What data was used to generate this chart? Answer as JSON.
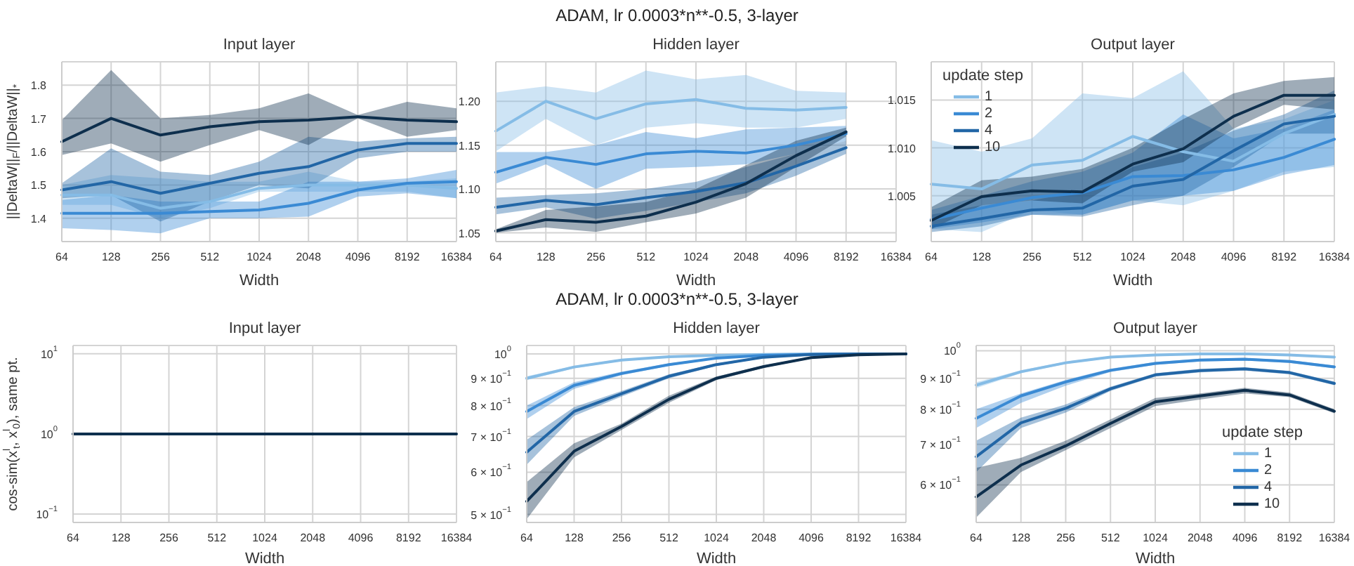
{
  "chart_data": [
    {
      "type": "line",
      "title": "Input layer",
      "xlabel": "Width",
      "ylabel": "||DeltaW||$_{F}$/||DeltaW||$_{*}$",
      "categories": [
        "64",
        "128",
        "256",
        "512",
        "1024",
        "2048",
        "4096",
        "8192",
        "16384"
      ],
      "ylim": [
        1.33,
        1.87
      ],
      "yticks": [
        1.4,
        1.5,
        1.6,
        1.7,
        1.8
      ],
      "grid": true,
      "series": [
        {
          "color": "#85bce6",
          "values": [
            1.47,
            1.47,
            1.43,
            1.45,
            1.49,
            1.5,
            1.5,
            1.5,
            1.49
          ],
          "lower": [
            1.44,
            1.44,
            1.4,
            1.43,
            1.48,
            1.48,
            1.48,
            1.48,
            1.46
          ],
          "upper": [
            1.5,
            1.53,
            1.52,
            1.51,
            1.51,
            1.54,
            1.51,
            1.51,
            1.52
          ]
        },
        {
          "color": "#3a8ad4",
          "values": [
            1.415,
            1.415,
            1.415,
            1.42,
            1.425,
            1.445,
            1.485,
            1.505,
            1.51
          ],
          "lower": [
            1.37,
            1.365,
            1.355,
            1.4,
            1.4,
            1.405,
            1.465,
            1.475,
            1.46
          ],
          "upper": [
            1.455,
            1.47,
            1.45,
            1.45,
            1.45,
            1.51,
            1.51,
            1.52,
            1.545
          ]
        },
        {
          "color": "#2266a6",
          "values": [
            1.485,
            1.51,
            1.475,
            1.505,
            1.535,
            1.555,
            1.605,
            1.625,
            1.625
          ],
          "lower": [
            1.46,
            1.47,
            1.39,
            1.45,
            1.5,
            1.49,
            1.58,
            1.6,
            1.6
          ],
          "upper": [
            1.505,
            1.61,
            1.54,
            1.53,
            1.57,
            1.645,
            1.63,
            1.64,
            1.645
          ]
        },
        {
          "color": "#0e2f4d",
          "values": [
            1.63,
            1.7,
            1.65,
            1.675,
            1.69,
            1.695,
            1.705,
            1.695,
            1.69
          ],
          "lower": [
            1.59,
            1.625,
            1.57,
            1.62,
            1.665,
            1.62,
            1.7,
            1.645,
            1.665
          ],
          "upper": [
            1.695,
            1.845,
            1.7,
            1.71,
            1.73,
            1.775,
            1.71,
            1.75,
            1.73
          ]
        }
      ]
    },
    {
      "type": "line",
      "title": "Hidden layer",
      "annotations": [
        "ADAM, lr 0.0003*n**-0.5, 3-layer"
      ],
      "xlabel": "Width",
      "categories": [
        "64",
        "128",
        "256",
        "512",
        "1024",
        "2048",
        "4096",
        "8192",
        "16384"
      ],
      "ylim": [
        1.04,
        1.245
      ],
      "yticks": [
        1.05,
        {
          "value": 1.1,
          "label": "1.10"
        },
        1.15,
        {
          "value": 1.2,
          "label": "1.20"
        }
      ],
      "grid": true,
      "series": [
        {
          "color": "#85bce6",
          "values": [
            1.166,
            1.2,
            1.18,
            1.197,
            1.202,
            1.192,
            1.19,
            1.193,
            null
          ],
          "lower": [
            1.143,
            1.18,
            1.15,
            1.17,
            1.175,
            1.17,
            1.17,
            1.18,
            null
          ],
          "upper": [
            1.21,
            1.217,
            1.21,
            1.235,
            1.225,
            1.23,
            1.212,
            1.21,
            null
          ]
        },
        {
          "color": "#3a8ad4",
          "values": [
            1.119,
            1.136,
            1.128,
            1.14,
            1.143,
            1.141,
            1.15,
            1.163,
            null
          ],
          "lower": [
            1.106,
            1.128,
            1.1,
            1.123,
            1.125,
            1.128,
            1.14,
            1.155,
            null
          ],
          "upper": [
            1.142,
            1.142,
            1.15,
            1.165,
            1.158,
            1.168,
            1.17,
            1.172,
            null
          ]
        },
        {
          "color": "#2266a6",
          "values": [
            1.079,
            1.087,
            1.082,
            1.09,
            1.097,
            1.107,
            1.126,
            1.147,
            null
          ],
          "lower": [
            1.071,
            1.079,
            1.066,
            1.075,
            1.085,
            1.095,
            1.115,
            1.14,
            null
          ],
          "upper": [
            1.09,
            1.093,
            1.095,
            1.1,
            1.108,
            1.125,
            1.14,
            1.155,
            null
          ]
        },
        {
          "color": "#0e2f4d",
          "values": [
            1.052,
            1.065,
            1.062,
            1.069,
            1.085,
            1.106,
            1.138,
            1.165,
            null
          ],
          "lower": [
            1.05,
            1.056,
            1.051,
            1.062,
            1.072,
            1.09,
            1.125,
            1.16,
            null
          ],
          "upper": [
            1.054,
            1.076,
            1.08,
            1.085,
            1.1,
            1.127,
            1.155,
            1.17,
            null
          ]
        }
      ]
    },
    {
      "type": "line",
      "title": "Output layer",
      "xlabel": "Width",
      "legend": "top left",
      "legend_title": "update step",
      "categories": [
        "64",
        "128",
        "256",
        "512",
        "1024",
        "2048",
        "4096",
        "8192",
        "16384"
      ],
      "ylim": [
        1.0002,
        1.019
      ],
      "yticks": [
        1.005,
        {
          "value": 1.01,
          "label": "1.010"
        },
        1.015
      ],
      "grid": true,
      "series": [
        {
          "name": "1",
          "color": "#85bce6",
          "values": [
            1.0062,
            1.0057,
            1.0082,
            1.0087,
            1.0112,
            1.0096,
            1.0086,
            1.0115,
            1.0135
          ],
          "lower": [
            1.0015,
            1.0012,
            1.0035,
            1.003,
            1.0045,
            1.004,
            1.0055,
            1.0075,
            1.008
          ],
          "upper": [
            1.0108,
            1.0096,
            1.011,
            1.0157,
            1.0152,
            1.018,
            1.012,
            1.013,
            1.015
          ]
        },
        {
          "name": "2",
          "color": "#3a8ad4",
          "values": [
            1.0025,
            1.0037,
            1.0048,
            1.0053,
            1.007,
            1.0071,
            1.0077,
            1.009,
            1.0109
          ],
          "lower": [
            1.0015,
            1.0022,
            1.003,
            1.003,
            1.0045,
            1.005,
            1.0055,
            1.0072,
            1.0082
          ],
          "upper": [
            1.0035,
            1.005,
            1.0065,
            1.0075,
            1.0095,
            1.0135,
            1.011,
            1.012,
            1.014
          ]
        },
        {
          "name": "4",
          "color": "#2266a6",
          "values": [
            1.0018,
            1.0026,
            1.0035,
            1.0037,
            1.006,
            1.0067,
            1.0097,
            1.0125,
            1.0133
          ],
          "lower": [
            1.0012,
            1.0018,
            1.003,
            1.0028,
            1.004,
            1.005,
            1.008,
            1.0115,
            1.0115
          ],
          "upper": [
            1.003,
            1.004,
            1.0045,
            1.0055,
            1.008,
            1.0095,
            1.0118,
            1.0135,
            1.016
          ]
        },
        {
          "name": "10",
          "color": "#0e2f4d",
          "values": [
            1.0024,
            1.0049,
            1.0055,
            1.0054,
            1.0083,
            1.0099,
            1.0133,
            1.0155,
            1.0155
          ],
          "lower": [
            1.0015,
            1.004,
            1.0045,
            1.0042,
            1.0075,
            1.0085,
            1.012,
            1.0145,
            1.014
          ],
          "upper": [
            1.0038,
            1.0066,
            1.007,
            1.0078,
            1.01,
            1.013,
            1.0157,
            1.017,
            1.0174
          ]
        }
      ]
    },
    {
      "type": "line",
      "title": "Input layer",
      "xlabel": "Width",
      "ylabel": "cos-sim(x$^{l}$$_{t}$, x$^{l}$$_{0}$), same pt.",
      "categories": [
        "64",
        "128",
        "256",
        "512",
        "1024",
        "2048",
        "4096",
        "8192",
        "16384"
      ],
      "log": true,
      "ylim": [
        0.0785,
        12.7
      ],
      "yticks": [
        {
          "value": 0.1,
          "label": "10$^{−1}$"
        },
        {
          "value": 1,
          "label": "10$^{0}$"
        },
        {
          "value": 10,
          "label": "10$^{1}$"
        }
      ],
      "grid": true,
      "series": [
        {
          "color": "#0e2f4d",
          "values": [
            1,
            1,
            1,
            1,
            1,
            1,
            1,
            1,
            1
          ]
        }
      ]
    },
    {
      "type": "line",
      "title": "Hidden layer",
      "annotations": [
        "ADAM, lr 0.0003*n**-0.5, 3-layer"
      ],
      "xlabel": "Width",
      "categories": [
        "64",
        "128",
        "256",
        "512",
        "1024",
        "2048",
        "4096",
        "8192",
        "16384"
      ],
      "log": true,
      "ylim": [
        0.483,
        1.037
      ],
      "yticks": [
        {
          "value": 0.5,
          "label": "5 × 10$^{−1}$"
        },
        {
          "value": 0.6,
          "label": "6 × 10$^{−1}$"
        },
        {
          "value": 0.7,
          "label": "7 × 10$^{−1}$"
        },
        {
          "value": 0.8,
          "label": "8 × 10$^{−1}$"
        },
        {
          "value": 0.9,
          "label": "9 × 10$^{−1}$"
        },
        {
          "value": 1,
          "label": "10$^{0}$"
        }
      ],
      "grid": true,
      "series": [
        {
          "color": "#85bce6",
          "values": [
            0.9,
            0.945,
            0.974,
            0.988,
            0.994,
            0.998,
            1,
            1,
            1
          ],
          "lower": [
            0.893,
            0.94,
            0.97,
            0.985,
            0.991,
            0.996,
            0.998,
            0.998,
            0.998
          ],
          "upper": [
            0.908,
            0.95,
            0.978,
            0.991,
            0.997,
            1,
            1.002,
            1.002,
            1.002
          ]
        },
        {
          "color": "#3a8ad4",
          "values": [
            0.78,
            0.873,
            0.919,
            0.955,
            0.982,
            0.994,
            0.998,
            1,
            1
          ],
          "lower": [
            0.755,
            0.86,
            0.912,
            0.95,
            0.978,
            0.991,
            0.996,
            0.998,
            0.998
          ],
          "upper": [
            0.8,
            0.885,
            0.926,
            0.96,
            0.986,
            0.997,
            1,
            1.002,
            1.002
          ]
        },
        {
          "color": "#2266a6",
          "values": [
            0.654,
            0.78,
            0.842,
            0.908,
            0.955,
            0.986,
            0.998,
            1,
            1
          ],
          "lower": [
            0.62,
            0.765,
            0.832,
            0.9,
            0.95,
            0.982,
            0.995,
            0.998,
            0.998
          ],
          "upper": [
            0.69,
            0.795,
            0.852,
            0.916,
            0.96,
            0.99,
            1,
            1.002,
            1.002
          ]
        },
        {
          "color": "#0e2f4d",
          "values": [
            0.529,
            0.657,
            0.731,
            0.822,
            0.9,
            0.947,
            0.984,
            0.996,
            1
          ],
          "lower": [
            0.49,
            0.64,
            0.72,
            0.81,
            0.893,
            0.942,
            0.98,
            0.993,
            0.998
          ],
          "upper": [
            0.575,
            0.68,
            0.74,
            0.835,
            0.907,
            0.952,
            0.988,
            0.999,
            1.002
          ]
        }
      ]
    },
    {
      "type": "line",
      "title": "Output layer",
      "xlabel": "Width",
      "legend": "bottom right",
      "legend_title": "update step",
      "categories": [
        "64",
        "128",
        "256",
        "512",
        "1024",
        "2048",
        "4096",
        "8192",
        "16384"
      ],
      "log": true,
      "ylim": [
        0.52,
        1.02
      ],
      "yticks": [
        {
          "value": 0.6,
          "label": "6 × 10$^{−1}$"
        },
        {
          "value": 0.7,
          "label": "7 × 10$^{−1}$"
        },
        {
          "value": 0.8,
          "label": "8 × 10$^{−1}$"
        },
        {
          "value": 0.9,
          "label": "9 × 10$^{−1}$"
        },
        {
          "value": 1,
          "label": "10$^{0}$"
        }
      ],
      "grid": true,
      "series": [
        {
          "name": "1",
          "color": "#85bce6",
          "values": [
            0.877,
            0.923,
            0.955,
            0.976,
            0.984,
            0.988,
            0.988,
            0.984,
            0.976
          ],
          "lower": [
            0.867,
            0.918,
            0.951,
            0.972,
            0.981,
            0.985,
            0.985,
            0.981,
            0.972
          ],
          "upper": [
            0.887,
            0.928,
            0.959,
            0.98,
            0.987,
            0.991,
            0.991,
            0.987,
            0.98
          ]
        },
        {
          "name": "2",
          "color": "#3a8ad4",
          "values": [
            0.773,
            0.842,
            0.888,
            0.928,
            0.953,
            0.965,
            0.968,
            0.96,
            0.94
          ],
          "lower": [
            0.745,
            0.82,
            0.875,
            0.922,
            0.948,
            0.96,
            0.963,
            0.955,
            0.935
          ],
          "upper": [
            0.8,
            0.85,
            0.895,
            0.934,
            0.958,
            0.97,
            0.973,
            0.965,
            0.945
          ]
        },
        {
          "name": "4",
          "color": "#2266a6",
          "values": [
            0.668,
            0.76,
            0.803,
            0.865,
            0.912,
            0.927,
            0.933,
            0.92,
            0.883
          ],
          "lower": [
            0.63,
            0.745,
            0.79,
            0.858,
            0.906,
            0.921,
            0.927,
            0.914,
            0.877
          ],
          "upper": [
            0.71,
            0.775,
            0.815,
            0.872,
            0.918,
            0.933,
            0.939,
            0.926,
            0.889
          ]
        },
        {
          "name": "10",
          "color": "#0e2f4d",
          "values": [
            0.573,
            0.647,
            0.696,
            0.758,
            0.823,
            0.842,
            0.86,
            0.845,
            0.794
          ],
          "lower": [
            0.53,
            0.63,
            0.685,
            0.745,
            0.81,
            0.83,
            0.85,
            0.838,
            0.788
          ],
          "upper": [
            0.64,
            0.665,
            0.71,
            0.77,
            0.835,
            0.85,
            0.868,
            0.853,
            0.8
          ]
        }
      ]
    }
  ]
}
